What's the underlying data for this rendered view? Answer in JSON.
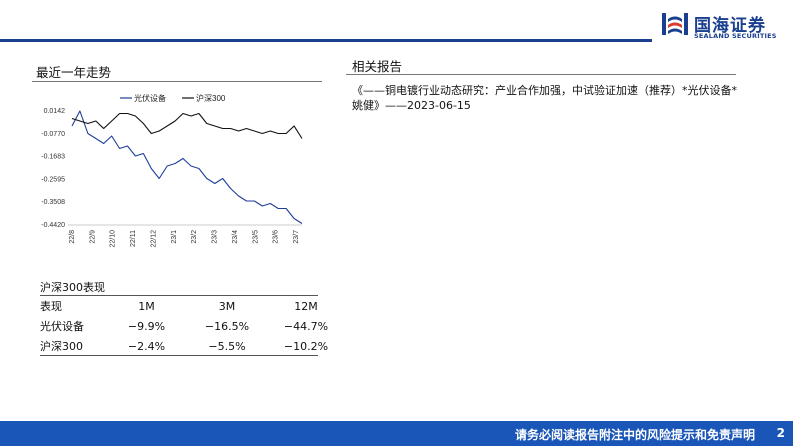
{
  "header": {
    "logo_cn": "国海证券",
    "logo_en": "SEALAND SECURITIES"
  },
  "left": {
    "trend_title": "最近一年走势",
    "table_caption": "沪深300表现",
    "table": {
      "headers": [
        "表现",
        "1M",
        "3M",
        "12M"
      ],
      "rows": [
        [
          "光伏设备",
          "−9.9%",
          "−16.5%",
          "−44.7%"
        ],
        [
          "沪深300",
          "−2.4%",
          "−5.5%",
          "−10.2%"
        ]
      ]
    }
  },
  "right": {
    "reports_title": "相关报告",
    "reports": [
      "《——铜电镀行业动态研究：产业合作加强，中试验证加速（推荐）*光伏设备*姚健》——2023-06-15"
    ]
  },
  "chart_data": {
    "type": "line",
    "legend": [
      "光伏设备",
      "沪深300"
    ],
    "legend_position": "top",
    "y_ticks": [
      "0.0142",
      "-0.0770",
      "-0.1683",
      "-0.2595",
      "-0.3508",
      "-0.4420"
    ],
    "ylim": [
      -0.442,
      0.0142
    ],
    "x_ticks": [
      "22/8",
      "22/9",
      "22/10",
      "22/11",
      "22/12",
      "23/1",
      "23/2",
      "23/3",
      "23/4",
      "23/5",
      "23/6",
      "23/7"
    ],
    "colors": {
      "光伏设备": "#1f3e99",
      "沪深300": "#111111"
    },
    "series": [
      {
        "name": "光伏设备",
        "values": [
          -0.05,
          0.01,
          -0.08,
          -0.1,
          -0.12,
          -0.09,
          -0.14,
          -0.13,
          -0.17,
          -0.16,
          -0.22,
          -0.26,
          -0.21,
          -0.2,
          -0.18,
          -0.21,
          -0.22,
          -0.26,
          -0.28,
          -0.26,
          -0.3,
          -0.33,
          -0.35,
          -0.35,
          -0.37,
          -0.36,
          -0.38,
          -0.38,
          -0.42,
          -0.44
        ]
      },
      {
        "name": "沪深300",
        "values": [
          -0.02,
          -0.03,
          -0.04,
          -0.03,
          -0.06,
          -0.03,
          0.0,
          0.0,
          -0.01,
          -0.04,
          -0.08,
          -0.07,
          -0.05,
          -0.03,
          0.0,
          -0.01,
          0.0,
          -0.04,
          -0.05,
          -0.06,
          -0.06,
          -0.07,
          -0.06,
          -0.07,
          -0.08,
          -0.07,
          -0.08,
          -0.08,
          -0.05,
          -0.1
        ]
      }
    ]
  },
  "footer": {
    "disclaimer": "请务必阅读报告附注中的风险提示和免责声明",
    "page": "2"
  }
}
